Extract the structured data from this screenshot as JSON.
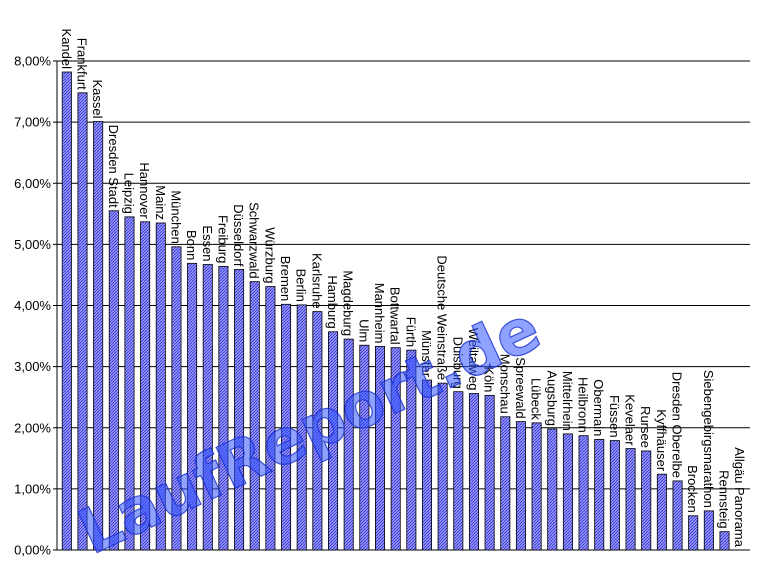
{
  "watermark": "LaufReport.de",
  "colors": {
    "bar_fill": "#9999ff",
    "bar_hatch": "#3333cc",
    "bar_stroke": "#000000",
    "grid": "#000000"
  },
  "chart_data": {
    "type": "bar",
    "title": "",
    "xlabel": "",
    "ylabel": "",
    "ylim": [
      0,
      0.08
    ],
    "grid": true,
    "y_ticks": [
      "0,00%",
      "1,00%",
      "2,00%",
      "3,00%",
      "4,00%",
      "5,00%",
      "6,00%",
      "7,00%",
      "8,00%"
    ],
    "categories": [
      "Kandel",
      "Frankfurt",
      "Kassel",
      "Dresden Stadt",
      "Leipzig",
      "Hannover",
      "Mainz",
      "München",
      "Bonn",
      "Essen",
      "Freiburg",
      "Düsseldorf",
      "Schwarzwald",
      "Würzburg",
      "Bremen",
      "Berlin",
      "Karlsruhe",
      "Hamburg",
      "Magdeburg",
      "Ulm",
      "Mannheim",
      "Bottwartal",
      "Fürth",
      "Münster",
      "Deutsche Weinstraße",
      "Duisburg",
      "Weiltalweg",
      "Köln",
      "Monschau",
      "Spreewald",
      "Lübeck",
      "Augsburg",
      "Mittelrhein",
      "Heilbronn",
      "Obermain",
      "Füssen",
      "Kevelaer",
      "Rursee",
      "Kyffhäuser",
      "Dresden Oberelbe",
      "Brocken",
      "Siebengebirgsmarathon",
      "Rennsteig",
      "Allgäu Panorama"
    ],
    "values": [
      0.0782,
      0.0748,
      0.0701,
      0.0555,
      0.0545,
      0.0537,
      0.0535,
      0.0496,
      0.0469,
      0.0467,
      0.0464,
      0.0459,
      0.0439,
      0.0431,
      0.0402,
      0.0401,
      0.039,
      0.0357,
      0.0345,
      0.0335,
      0.0333,
      0.0331,
      0.0327,
      0.0278,
      0.0273,
      0.0259,
      0.0256,
      0.0253,
      0.0218,
      0.021,
      0.0208,
      0.0198,
      0.019,
      0.0187,
      0.0181,
      0.0179,
      0.0166,
      0.0162,
      0.0124,
      0.0113,
      0.0056,
      0.0064,
      0.003,
      0.0
    ]
  }
}
